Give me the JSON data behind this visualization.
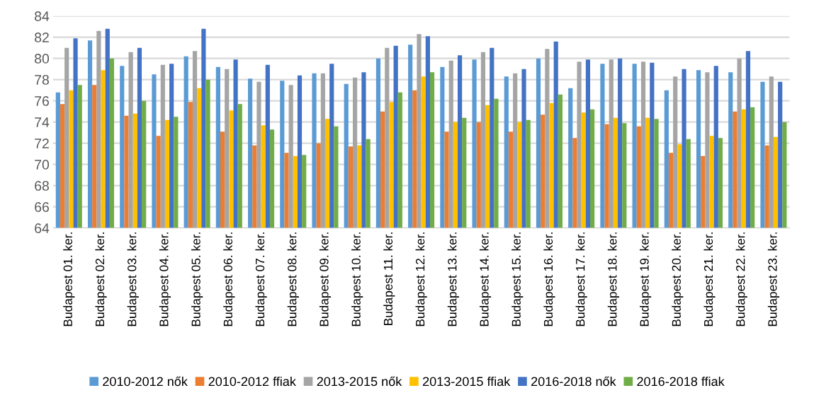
{
  "chart_data": {
    "type": "bar",
    "categories": [
      "Budapest 01. ker.",
      "Budapest 02. ker.",
      "Budapest 03. ker.",
      "Budapest 04. ker.",
      "Budapest 05. ker.",
      "Budapest 06. ker.",
      "Budapest 07. ker.",
      "Budapest 08. ker.",
      "Budapest 09. ker.",
      "Budapest 10. ker.",
      "Budapest 11. ker.",
      "Budapest 12. ker.",
      "Budapest 13. ker.",
      "Budapest 14. ker.",
      "Budapest 15. ker.",
      "Budapest 16. ker.",
      "Budapest 17. ker.",
      "Budapest 18. ker.",
      "Budapest 19. ker.",
      "Budapest 20. ker.",
      "Budapest 21. ker.",
      "Budapest 22. ker.",
      "Budapest 23. ker."
    ],
    "series": [
      {
        "name": "2010-2012 nők",
        "color": "#5b9bd5",
        "values": [
          76.8,
          81.7,
          79.3,
          78.5,
          80.2,
          79.2,
          78.1,
          77.9,
          78.6,
          77.6,
          80.0,
          81.3,
          79.2,
          79.9,
          78.3,
          80.0,
          77.2,
          79.5,
          79.5,
          77.0,
          78.9,
          78.7,
          77.8
        ]
      },
      {
        "name": "2010-2012 ffiak",
        "color": "#ed7d31",
        "values": [
          75.7,
          77.5,
          74.6,
          72.7,
          75.9,
          73.1,
          71.8,
          71.1,
          72.0,
          71.7,
          75.0,
          77.0,
          73.1,
          74.0,
          73.1,
          74.7,
          72.5,
          73.8,
          73.6,
          71.1,
          70.8,
          75.0,
          71.8
        ]
      },
      {
        "name": "2013-2015 nők",
        "color": "#a5a5a5",
        "values": [
          81.0,
          82.6,
          80.6,
          79.4,
          80.7,
          79.0,
          77.8,
          77.5,
          78.6,
          78.2,
          81.0,
          82.3,
          79.8,
          80.6,
          78.6,
          80.9,
          79.7,
          79.9,
          79.7,
          78.3,
          78.7,
          80.0,
          78.3
        ]
      },
      {
        "name": "2013-2015 ffiak",
        "color": "#ffc000",
        "values": [
          77.0,
          78.9,
          74.8,
          74.2,
          77.2,
          75.1,
          73.7,
          70.8,
          74.3,
          71.8,
          75.9,
          78.3,
          74.0,
          75.6,
          74.0,
          75.8,
          74.9,
          74.4,
          74.4,
          71.9,
          72.7,
          75.2,
          72.6
        ]
      },
      {
        "name": "2016-2018 nők",
        "color": "#4472c4",
        "values": [
          81.9,
          82.8,
          81.0,
          79.5,
          82.8,
          79.9,
          79.4,
          78.4,
          79.5,
          78.7,
          81.2,
          82.1,
          80.3,
          81.0,
          79.0,
          81.6,
          79.9,
          80.0,
          79.6,
          79.0,
          79.3,
          80.7,
          77.8
        ]
      },
      {
        "name": "2016-2018 ffiak",
        "color": "#70ad47",
        "values": [
          77.5,
          80.0,
          76.0,
          74.5,
          78.0,
          75.7,
          73.3,
          70.9,
          73.6,
          72.4,
          76.8,
          78.7,
          74.4,
          76.2,
          74.2,
          76.6,
          75.2,
          73.9,
          74.3,
          72.4,
          72.5,
          75.4,
          74.0
        ]
      }
    ],
    "ylim": [
      64,
      84
    ],
    "yticks": [
      64,
      66,
      68,
      70,
      72,
      74,
      76,
      78,
      80,
      82,
      84
    ],
    "grid": "y",
    "legend": "bottom"
  }
}
